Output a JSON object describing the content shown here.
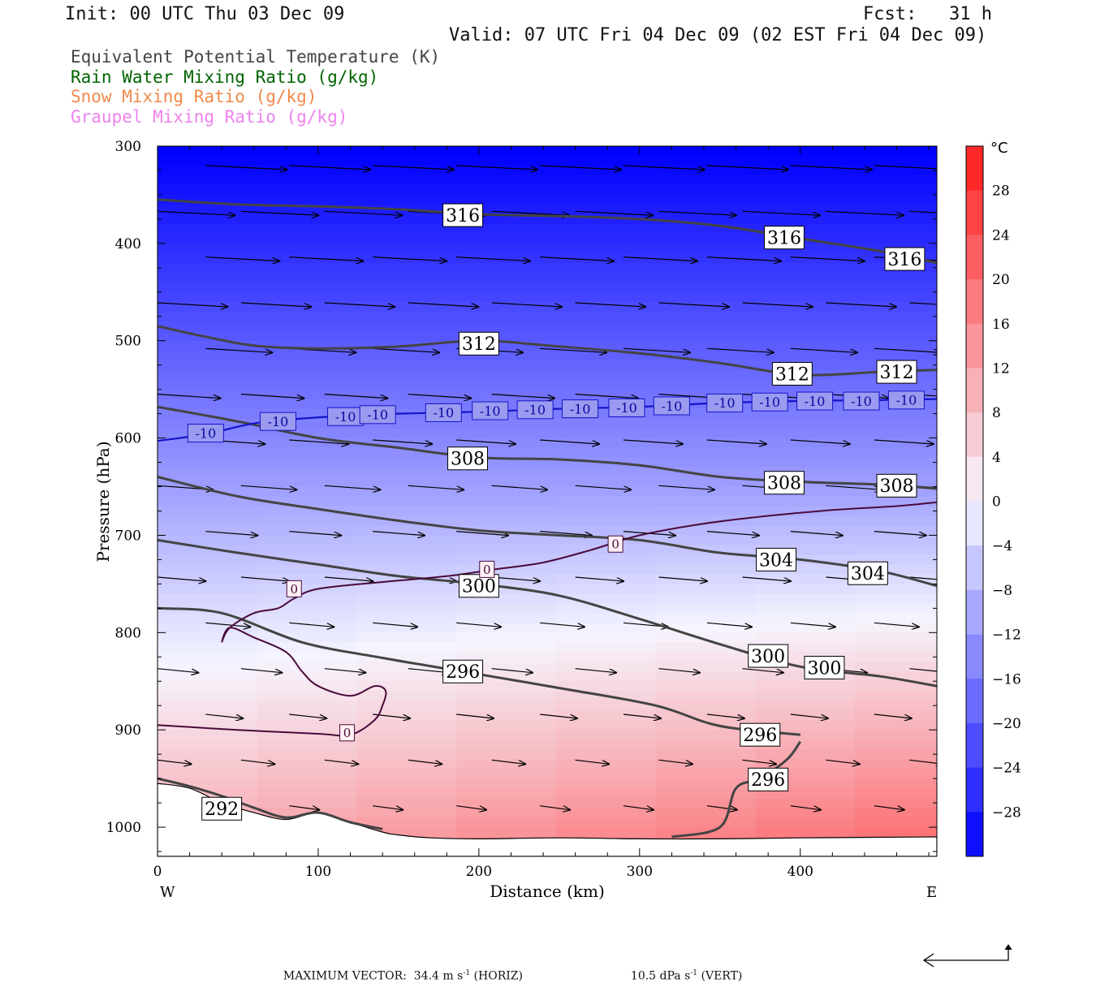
{
  "header": {
    "init": "Init: 00 UTC Thu 03 Dec 09",
    "fcst": "Fcst:   31 h",
    "valid": "Valid: 07 UTC Fri 04 Dec 09 (02 EST Fri 04 Dec 09)"
  },
  "fields": [
    {
      "label": "Equivalent Potential Temperature (K)",
      "color": "#444444"
    },
    {
      "label": "Rain Water Mixing Ratio (g/kg)",
      "color": "#006400"
    },
    {
      "label": "Snow Mixing Ratio (g/kg)",
      "color": "#f08a4b"
    },
    {
      "label": "Graupel Mixing Ratio (g/kg)",
      "color": "#ee82ee"
    }
  ],
  "chart_data": {
    "type": "heatmap",
    "xlabel": "Distance (km)",
    "ylabel": "Pressure (hPa)",
    "xlim": [
      0,
      485
    ],
    "ylim": [
      1030,
      300
    ],
    "x_ticks": [
      0,
      100,
      200,
      300,
      400
    ],
    "y_ticks": [
      300,
      400,
      500,
      600,
      700,
      800,
      900,
      1000
    ],
    "x_end_labels": {
      "left": "W",
      "right": "E"
    },
    "colorbar": {
      "unit": "°C",
      "ticks": [
        28,
        24,
        20,
        16,
        12,
        8,
        4,
        0,
        -4,
        -8,
        -12,
        -16,
        -20,
        -24,
        -28
      ],
      "range": [
        -32,
        32
      ],
      "cold_color": "#0000ff",
      "neutral_color": "#f5f5ff",
      "warm_color": "#ff1a1a"
    },
    "theta_e_contours": [
      {
        "value": 316,
        "points": [
          [
            0,
            355
          ],
          [
            50,
            360
          ],
          [
            100,
            362
          ],
          [
            150,
            365
          ],
          [
            200,
            370
          ],
          [
            250,
            372
          ],
          [
            300,
            375
          ],
          [
            350,
            382
          ],
          [
            400,
            395
          ],
          [
            450,
            408
          ],
          [
            485,
            420
          ]
        ],
        "labels": [
          [
            190,
            371,
            "316"
          ],
          [
            390,
            394,
            "316"
          ],
          [
            465,
            416,
            "316"
          ]
        ]
      },
      {
        "value": 312,
        "points": [
          [
            0,
            485
          ],
          [
            30,
            496
          ],
          [
            60,
            505
          ],
          [
            100,
            508
          ],
          [
            150,
            506
          ],
          [
            200,
            500
          ],
          [
            250,
            506
          ],
          [
            300,
            513
          ],
          [
            350,
            523
          ],
          [
            400,
            535
          ],
          [
            450,
            532
          ],
          [
            485,
            530
          ]
        ],
        "labels": [
          [
            200,
            503,
            "312"
          ],
          [
            395,
            534,
            "312"
          ],
          [
            460,
            532,
            "312"
          ]
        ]
      },
      {
        "value": 308,
        "points": [
          [
            0,
            568
          ],
          [
            50,
            583
          ],
          [
            100,
            600
          ],
          [
            150,
            610
          ],
          [
            200,
            620
          ],
          [
            250,
            622
          ],
          [
            300,
            628
          ],
          [
            350,
            640
          ],
          [
            400,
            645
          ],
          [
            450,
            648
          ],
          [
            485,
            652
          ]
        ],
        "labels": [
          [
            193,
            621,
            "308"
          ],
          [
            390,
            646,
            "308"
          ],
          [
            460,
            649,
            "308"
          ]
        ]
      },
      {
        "value": 304,
        "points": [
          [
            0,
            640
          ],
          [
            50,
            660
          ],
          [
            100,
            673
          ],
          [
            150,
            685
          ],
          [
            200,
            695
          ],
          [
            250,
            700
          ],
          [
            300,
            705
          ],
          [
            350,
            718
          ],
          [
            400,
            725
          ],
          [
            450,
            737
          ],
          [
            485,
            752
          ]
        ],
        "labels": [
          [
            385,
            725,
            "304"
          ],
          [
            442,
            739,
            "304"
          ]
        ]
      },
      {
        "value": 300,
        "points": [
          [
            0,
            705
          ],
          [
            50,
            718
          ],
          [
            100,
            730
          ],
          [
            150,
            742
          ],
          [
            200,
            750
          ],
          [
            250,
            762
          ],
          [
            300,
            786
          ],
          [
            350,
            812
          ],
          [
            400,
            835
          ],
          [
            450,
            845
          ],
          [
            485,
            855
          ]
        ],
        "labels": [
          [
            200,
            752,
            "300"
          ],
          [
            380,
            824,
            "300"
          ],
          [
            415,
            836,
            "300"
          ]
        ]
      },
      {
        "value": 296,
        "points": [
          [
            0,
            775
          ],
          [
            40,
            780
          ],
          [
            90,
            810
          ],
          [
            140,
            826
          ],
          [
            190,
            840
          ],
          [
            250,
            857
          ],
          [
            310,
            875
          ],
          [
            350,
            896
          ],
          [
            400,
            905
          ]
        ],
        "labels": [
          [
            190,
            840,
            "296"
          ],
          [
            375,
            905,
            "296"
          ],
          [
            380,
            951,
            "296"
          ]
        ]
      },
      {
        "value": 296,
        "points": [
          [
            320,
            1010
          ],
          [
            350,
            1000
          ],
          [
            360,
            960
          ],
          [
            375,
            950
          ],
          [
            392,
            930
          ],
          [
            400,
            912
          ]
        ],
        "labels": []
      },
      {
        "value": 292,
        "points": [
          [
            0,
            950
          ],
          [
            20,
            958
          ],
          [
            40,
            968
          ],
          [
            60,
            980
          ],
          [
            80,
            990
          ],
          [
            100,
            985
          ],
          [
            120,
            995
          ],
          [
            140,
            1002
          ]
        ],
        "labels": [
          [
            40,
            981,
            "292"
          ]
        ]
      }
    ],
    "freezing_contour": {
      "value": 0,
      "labels": [
        [
          85,
          755,
          "0"
        ],
        [
          205,
          735,
          "0"
        ],
        [
          285,
          709,
          "0"
        ],
        [
          118,
          903,
          "0"
        ]
      ]
    },
    "minus10_contour": {
      "value": -10,
      "points": [
        [
          0,
          603
        ],
        [
          30,
          596
        ],
        [
          60,
          585
        ],
        [
          90,
          580
        ],
        [
          120,
          577
        ],
        [
          150,
          575
        ],
        [
          200,
          573
        ],
        [
          250,
          570
        ],
        [
          300,
          568
        ],
        [
          350,
          564
        ],
        [
          400,
          562
        ],
        [
          450,
          561
        ],
        [
          485,
          560
        ]
      ],
      "labels": [
        [
          30,
          595,
          "-10"
        ],
        [
          75,
          583,
          "-10"
        ],
        [
          117,
          578,
          "-10"
        ],
        [
          137,
          576,
          "-10"
        ],
        [
          178,
          574,
          "-10"
        ],
        [
          207,
          572,
          "-10"
        ],
        [
          235,
          571,
          "-10"
        ],
        [
          263,
          570,
          "-10"
        ],
        [
          292,
          569,
          "-10"
        ],
        [
          320,
          567,
          "-10"
        ],
        [
          353,
          564,
          "-10"
        ],
        [
          381,
          563,
          "-10"
        ],
        [
          409,
          562,
          "-10"
        ],
        [
          438,
          562,
          "-10"
        ],
        [
          466,
          561,
          "-10"
        ]
      ]
    },
    "terrain_pressure": [
      [
        0,
        955
      ],
      [
        20,
        960
      ],
      [
        40,
        975
      ],
      [
        60,
        985
      ],
      [
        80,
        992
      ],
      [
        100,
        985
      ],
      [
        120,
        995
      ],
      [
        140,
        1005
      ],
      [
        150,
        1008
      ],
      [
        170,
        1011
      ],
      [
        200,
        1012
      ],
      [
        250,
        1011
      ],
      [
        300,
        1012
      ],
      [
        350,
        1012
      ],
      [
        400,
        1011
      ],
      [
        485,
        1010
      ]
    ]
  },
  "footer": {
    "max_vector": "MAXIMUM VECTOR:  34.4 m s",
    "horiz": " (HORIZ)",
    "vert": "10.5 dPa s",
    "vert_tail": " (VERT)",
    "exp": "-1"
  }
}
